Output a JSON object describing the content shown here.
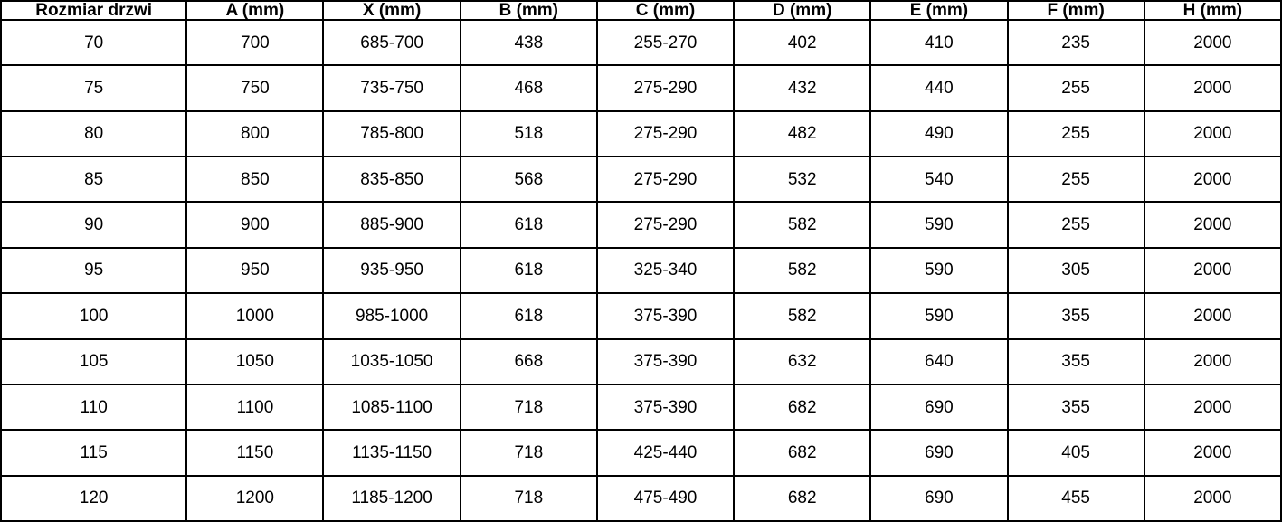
{
  "chart_data": {
    "type": "table",
    "title": "",
    "columns": [
      "Rozmiar drzwi",
      "A (mm)",
      "X (mm)",
      "B (mm)",
      "C (mm)",
      "D (mm)",
      "E (mm)",
      "F (mm)",
      "H (mm)"
    ],
    "rows": [
      [
        "70",
        "700",
        "685-700",
        "438",
        "255-270",
        "402",
        "410",
        "235",
        "2000"
      ],
      [
        "75",
        "750",
        "735-750",
        "468",
        "275-290",
        "432",
        "440",
        "255",
        "2000"
      ],
      [
        "80",
        "800",
        "785-800",
        "518",
        "275-290",
        "482",
        "490",
        "255",
        "2000"
      ],
      [
        "85",
        "850",
        "835-850",
        "568",
        "275-290",
        "532",
        "540",
        "255",
        "2000"
      ],
      [
        "90",
        "900",
        "885-900",
        "618",
        "275-290",
        "582",
        "590",
        "255",
        "2000"
      ],
      [
        "95",
        "950",
        "935-950",
        "618",
        "325-340",
        "582",
        "590",
        "305",
        "2000"
      ],
      [
        "100",
        "1000",
        "985-1000",
        "618",
        "375-390",
        "582",
        "590",
        "355",
        "2000"
      ],
      [
        "105",
        "1050",
        "1035-1050",
        "668",
        "375-390",
        "632",
        "640",
        "355",
        "2000"
      ],
      [
        "110",
        "1100",
        "1085-1100",
        "718",
        "375-390",
        "682",
        "690",
        "355",
        "2000"
      ],
      [
        "115",
        "1150",
        "1135-1150",
        "718",
        "425-440",
        "682",
        "690",
        "405",
        "2000"
      ],
      [
        "120",
        "1200",
        "1185-1200",
        "718",
        "475-490",
        "682",
        "690",
        "455",
        "2000"
      ]
    ],
    "layout": {
      "grid": true,
      "header_bold": true,
      "cell_alignment": "center"
    },
    "colors": {
      "border": "#000000",
      "text": "#000000",
      "background": "#ffffff"
    }
  }
}
